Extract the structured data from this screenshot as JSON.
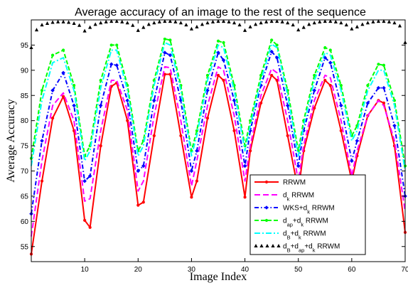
{
  "chart_data": {
    "type": "line",
    "title": "Average accuracy of an image to the rest of the sequence",
    "xlabel": "Image Index",
    "ylabel": "Average Accuracy",
    "xlim": [
      0,
      70
    ],
    "ylim": [
      52,
      100
    ],
    "xticks": [
      10,
      20,
      30,
      40,
      50,
      60,
      70
    ],
    "yticks": [
      55,
      60,
      65,
      70,
      75,
      80,
      85,
      90,
      95
    ],
    "legend_position": "bottom-right",
    "grid": false,
    "series": [
      {
        "name": "RRWM",
        "name_parts": {
          "base": "RRWM"
        },
        "color": "#ff0000",
        "dash": "solid",
        "marker": "dot",
        "x": [
          0,
          2,
          4,
          6,
          8,
          10,
          11,
          13,
          15,
          16,
          18,
          20,
          21,
          23,
          25,
          26,
          28,
          30,
          31,
          33,
          35,
          36,
          38,
          40,
          41,
          43,
          45,
          46,
          48,
          50,
          51,
          53,
          55,
          56,
          58,
          60,
          61,
          63,
          65,
          66,
          68,
          70
        ],
        "y": [
          53.5,
          68,
          80.5,
          84.8,
          78,
          60.2,
          58.8,
          75,
          86.8,
          87.5,
          80,
          63.2,
          63.8,
          77,
          89.2,
          89.2,
          77,
          64.8,
          68,
          80.5,
          89,
          88,
          78,
          64.8,
          74,
          83.5,
          89,
          88,
          77,
          66,
          74,
          82.5,
          88,
          87,
          78,
          68,
          73,
          81,
          84,
          83.5,
          75,
          57.8
        ]
      },
      {
        "name": "d_k RRWM",
        "name_parts": {
          "base": "d",
          "sub1": "k",
          "tail": " RRWM"
        },
        "color": "#ff00ff",
        "dash": "8,4",
        "marker": "none",
        "x": [
          0,
          2,
          4,
          6,
          8,
          10,
          11,
          13,
          15,
          16,
          18,
          20,
          21,
          23,
          25,
          26,
          28,
          30,
          31,
          33,
          35,
          36,
          38,
          40,
          41,
          43,
          45,
          46,
          48,
          50,
          51,
          53,
          55,
          56,
          58,
          60,
          61,
          63,
          65,
          66,
          68,
          70
        ],
        "y": [
          57,
          72,
          83,
          85.5,
          80,
          64,
          64.5,
          78,
          88,
          88,
          82,
          66,
          68,
          81,
          90.7,
          90.5,
          80,
          67,
          72,
          83,
          90.7,
          90,
          81,
          68,
          75,
          85,
          90.3,
          89.5,
          80,
          68,
          75,
          84,
          89,
          88.5,
          80,
          69,
          74,
          81,
          84,
          83,
          76,
          62
        ]
      },
      {
        "name": "WKS+d_k RRWM",
        "name_parts": {
          "base": "WKS+d",
          "sub1": "k",
          "tail": " RRWM"
        },
        "color": "#0000ff",
        "dash": "6,3,1.5,3",
        "marker": "diamond",
        "x": [
          0,
          2,
          4,
          6,
          8,
          10,
          11,
          13,
          15,
          16,
          18,
          20,
          21,
          23,
          25,
          26,
          28,
          30,
          31,
          33,
          35,
          36,
          38,
          40,
          41,
          43,
          45,
          46,
          48,
          50,
          51,
          53,
          55,
          56,
          58,
          60,
          61,
          63,
          65,
          66,
          68,
          70
        ],
        "y": [
          61.5,
          76,
          86,
          89.5,
          83,
          68,
          69,
          83,
          91.2,
          91,
          84,
          70,
          71,
          84,
          93.5,
          93,
          84,
          70,
          74,
          86,
          93.5,
          92,
          84,
          71,
          78,
          87,
          93.7,
          92.5,
          83,
          71,
          78,
          86,
          92.5,
          91.5,
          83,
          72,
          76,
          83.5,
          86.5,
          86.5,
          79,
          65
        ]
      },
      {
        "name": "d_ap+d_k RRWM",
        "name_parts": {
          "base": "d",
          "sub1": "ap",
          "mid": "+d",
          "sub2": "k",
          "tail": " RRWM"
        },
        "color": "#00ff00",
        "dash": "6,3",
        "marker": "dot",
        "x": [
          0,
          2,
          4,
          6,
          8,
          10,
          11,
          13,
          15,
          16,
          18,
          20,
          21,
          23,
          25,
          26,
          28,
          30,
          31,
          33,
          35,
          36,
          38,
          40,
          41,
          43,
          45,
          46,
          48,
          50,
          51,
          53,
          55,
          56,
          58,
          60,
          61,
          63,
          65,
          66,
          68,
          70
        ],
        "y": [
          72.5,
          86,
          93,
          94,
          87,
          73,
          75,
          88,
          95,
          95,
          87,
          74,
          76,
          88,
          96.2,
          96,
          87,
          74,
          78,
          89,
          95.8,
          95.5,
          87,
          75,
          80,
          89,
          96,
          95,
          86,
          74,
          80,
          89,
          94.5,
          94,
          87,
          77,
          79,
          87,
          91.2,
          91,
          84,
          71
        ]
      },
      {
        "name": "d_B+d_k RRWM",
        "name_parts": {
          "base": "d",
          "sub1": "B",
          "mid": "+d",
          "sub2": "k",
          "tail": " RRWM"
        },
        "color": "#00ffff",
        "dash": "8,3,2,3",
        "marker": "none",
        "x": [
          0,
          2,
          4,
          6,
          8,
          10,
          11,
          13,
          15,
          16,
          18,
          20,
          21,
          23,
          25,
          26,
          28,
          30,
          31,
          33,
          35,
          36,
          38,
          40,
          41,
          43,
          45,
          46,
          48,
          50,
          51,
          53,
          55,
          56,
          58,
          60,
          61,
          63,
          65,
          66,
          68,
          70
        ],
        "y": [
          71,
          84,
          91.5,
          92.5,
          86,
          72,
          74,
          86.5,
          94,
          94,
          86,
          73,
          75,
          87,
          95.5,
          95,
          86,
          73,
          77,
          88,
          95,
          94.5,
          86,
          74,
          79,
          88,
          95.2,
          94.5,
          85,
          73,
          79,
          88,
          93.5,
          93,
          86,
          76,
          78,
          86,
          90,
          90,
          83,
          70
        ]
      },
      {
        "name": "d_B+d_ap+d_k RRWM",
        "name_parts": {
          "base": "d",
          "sub1": "B",
          "mid": "+d",
          "sub2": "ap",
          "mid2": "+d",
          "sub3": "k",
          "tail": " RRWM"
        },
        "color": "#000000",
        "dash": "none",
        "marker": "triangle",
        "x": [
          0,
          1,
          2,
          3,
          4,
          5,
          6,
          7,
          8,
          9,
          10,
          11,
          12,
          13,
          14,
          15,
          16,
          17,
          18,
          19,
          20,
          21,
          22,
          23,
          24,
          25,
          26,
          27,
          28,
          29,
          30,
          31,
          32,
          33,
          34,
          35,
          36,
          37,
          38,
          39,
          40,
          41,
          42,
          43,
          44,
          45,
          46,
          47,
          48,
          49,
          50,
          51,
          52,
          53,
          54,
          55,
          56,
          57,
          58,
          59,
          60,
          61,
          62,
          63,
          64,
          65,
          66,
          67,
          68,
          69,
          70
        ],
        "y": [
          94.5,
          98,
          99,
          99.3,
          99.5,
          99.6,
          99.6,
          99.5,
          99.3,
          98.9,
          97.8,
          98.5,
          99.1,
          99.4,
          99.6,
          99.7,
          99.7,
          99.6,
          99.4,
          98.9,
          97.9,
          98.5,
          99.1,
          99.4,
          99.6,
          99.7,
          99.7,
          99.6,
          99.4,
          99,
          98.2,
          98.6,
          99.1,
          99.4,
          99.6,
          99.7,
          99.7,
          99.6,
          99.4,
          99,
          97.9,
          98.6,
          99.1,
          99.4,
          99.6,
          99.7,
          99.7,
          99.6,
          99.4,
          99,
          98,
          98.5,
          99.1,
          99.4,
          99.6,
          99.7,
          99.7,
          99.6,
          99.4,
          99,
          98.2,
          98.6,
          99.1,
          99.4,
          99.6,
          99.7,
          99.7,
          99.6,
          99.4,
          98.8,
          95.5
        ]
      }
    ]
  }
}
